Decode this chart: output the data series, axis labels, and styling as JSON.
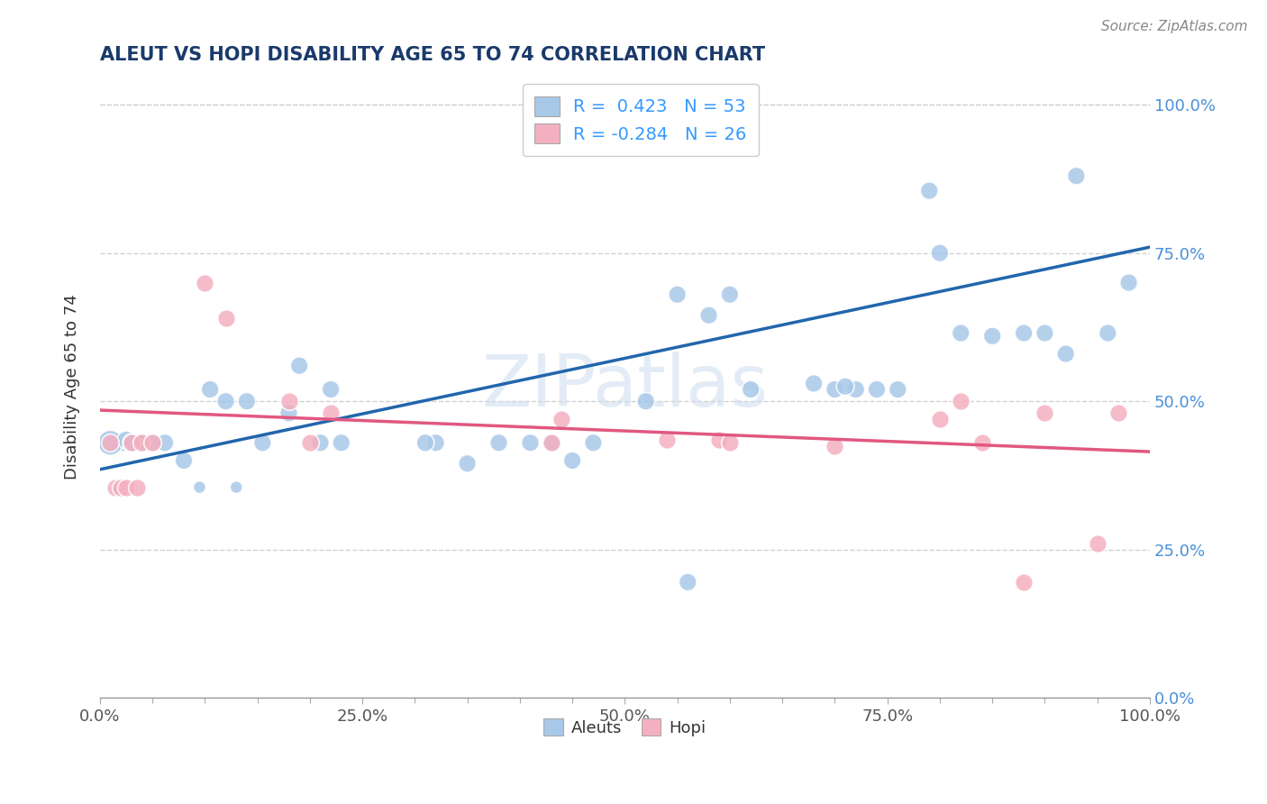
{
  "title": "ALEUT VS HOPI DISABILITY AGE 65 TO 74 CORRELATION CHART",
  "source": "Source: ZipAtlas.com",
  "xlabel": "",
  "ylabel": "Disability Age 65 to 74",
  "xlim": [
    0.0,
    1.0
  ],
  "ylim": [
    0.0,
    1.05
  ],
  "aleut_R": 0.423,
  "aleut_N": 53,
  "hopi_R": -0.284,
  "hopi_N": 26,
  "aleut_color": "#a8c8e8",
  "hopi_color": "#f4b0c0",
  "aleut_line_color": "#2166ac",
  "hopi_line_color": "#e05880",
  "background_color": "#ffffff",
  "watermark": "ZIPatlas",
  "aleut_x": [
    0.042,
    0.062,
    0.03,
    0.025,
    0.02,
    0.015,
    0.01,
    0.025,
    0.03,
    0.04,
    0.05,
    0.08,
    0.095,
    0.105,
    0.12,
    0.14,
    0.155,
    0.18,
    0.13,
    0.19,
    0.22,
    0.21,
    0.23,
    0.32,
    0.31,
    0.35,
    0.38,
    0.41,
    0.43,
    0.45,
    0.47,
    0.52,
    0.56,
    0.58,
    0.6,
    0.62,
    0.68,
    0.7,
    0.72,
    0.71,
    0.74,
    0.76,
    0.79,
    0.8,
    0.82,
    0.85,
    0.88,
    0.9,
    0.92,
    0.93,
    0.96,
    0.98,
    0.55
  ],
  "aleut_y": [
    0.43,
    0.43,
    0.43,
    0.43,
    0.43,
    0.43,
    0.43,
    0.435,
    0.43,
    0.43,
    0.43,
    0.4,
    0.355,
    0.52,
    0.5,
    0.5,
    0.43,
    0.48,
    0.355,
    0.56,
    0.52,
    0.43,
    0.43,
    0.43,
    0.43,
    0.395,
    0.43,
    0.43,
    0.43,
    0.4,
    0.43,
    0.5,
    0.195,
    0.645,
    0.68,
    0.52,
    0.53,
    0.52,
    0.52,
    0.525,
    0.52,
    0.52,
    0.855,
    0.75,
    0.615,
    0.61,
    0.615,
    0.615,
    0.58,
    0.88,
    0.615,
    0.7,
    0.68
  ],
  "aleut_sizes": [
    200,
    200,
    200,
    200,
    200,
    200,
    400,
    200,
    200,
    200,
    200,
    200,
    100,
    200,
    200,
    200,
    200,
    200,
    100,
    200,
    200,
    200,
    200,
    200,
    200,
    200,
    200,
    200,
    200,
    200,
    200,
    200,
    200,
    200,
    200,
    200,
    200,
    200,
    200,
    200,
    200,
    200,
    200,
    200,
    200,
    200,
    200,
    200,
    200,
    200,
    200,
    200,
    200
  ],
  "hopi_x": [
    0.01,
    0.015,
    0.02,
    0.025,
    0.03,
    0.035,
    0.04,
    0.05,
    0.1,
    0.12,
    0.18,
    0.2,
    0.22,
    0.43,
    0.44,
    0.54,
    0.59,
    0.6,
    0.7,
    0.8,
    0.82,
    0.84,
    0.9,
    0.95,
    0.97,
    0.88
  ],
  "hopi_y": [
    0.43,
    0.355,
    0.355,
    0.355,
    0.43,
    0.355,
    0.43,
    0.43,
    0.7,
    0.64,
    0.5,
    0.43,
    0.48,
    0.43,
    0.47,
    0.435,
    0.435,
    0.43,
    0.425,
    0.47,
    0.5,
    0.43,
    0.48,
    0.26,
    0.48,
    0.195
  ],
  "hopi_sizes": [
    200,
    200,
    200,
    200,
    200,
    200,
    200,
    200,
    200,
    200,
    200,
    200,
    200,
    200,
    200,
    200,
    200,
    200,
    200,
    200,
    200,
    200,
    200,
    200,
    200,
    200
  ],
  "aleut_line_x": [
    0.0,
    1.0
  ],
  "aleut_line_y": [
    0.385,
    0.76
  ],
  "hopi_line_x": [
    0.0,
    1.0
  ],
  "hopi_line_y": [
    0.485,
    0.415
  ],
  "ytick_labels": [
    "0.0%",
    "25.0%",
    "50.0%",
    "75.0%",
    "100.0%"
  ],
  "ytick_vals": [
    0.0,
    0.25,
    0.5,
    0.75,
    1.0
  ],
  "xtick_labels": [
    "0.0%",
    "25.0%",
    "50.0%",
    "75.0%",
    "100.0%"
  ],
  "xtick_vals": [
    0.0,
    0.25,
    0.5,
    0.75,
    1.0
  ],
  "xtick_minor": [
    0.05,
    0.1,
    0.15,
    0.2,
    0.3,
    0.35,
    0.4,
    0.45,
    0.55,
    0.6,
    0.65,
    0.7,
    0.8,
    0.85,
    0.9,
    0.95
  ],
  "title_color": "#1a3a6b",
  "ytick_color": "#4a90d9",
  "xtick_color": "#555555"
}
